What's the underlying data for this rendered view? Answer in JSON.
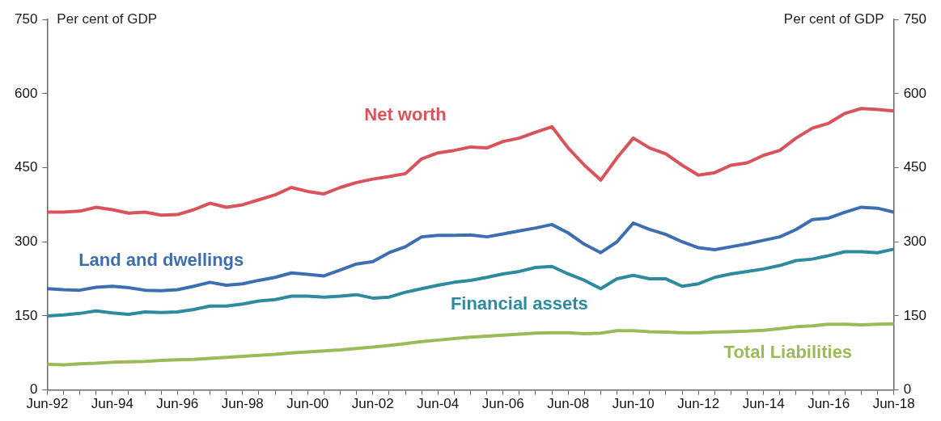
{
  "chart_data": {
    "type": "line",
    "ylabel": "Per cent of GDP",
    "y2label": "Per cent of GDP",
    "categories": [
      "Jun-92",
      null,
      null,
      null,
      "Jun-94",
      null,
      null,
      null,
      "Jun-96",
      null,
      null,
      null,
      "Jun-98",
      null,
      null,
      null,
      "Jun-00",
      null,
      null,
      null,
      "Jun-02",
      null,
      null,
      null,
      "Jun-04",
      null,
      null,
      null,
      "Jun-06",
      null,
      null,
      null,
      "Jun-08",
      null,
      null,
      null,
      "Jun-10",
      null,
      null,
      null,
      "Jun-12",
      null,
      null,
      null,
      "Jun-14",
      null,
      null,
      null,
      "Jun-16",
      null,
      null,
      null,
      "Jun-18"
    ],
    "ylim": [
      0,
      750
    ],
    "yticks": [
      0,
      150,
      300,
      450,
      600,
      750
    ],
    "y2lim": [
      0,
      750
    ],
    "y2ticks": [
      0,
      150,
      300,
      450,
      600,
      750
    ],
    "series": [
      {
        "name": "Net worth",
        "color": "#d9535a",
        "values": [
          360,
          360,
          362,
          370,
          365,
          358,
          360,
          354,
          355,
          365,
          378,
          370,
          375,
          385,
          395,
          410,
          402,
          397,
          410,
          420,
          427,
          432,
          438,
          468,
          480,
          485,
          492,
          490,
          503,
          510,
          522,
          533,
          490,
          455,
          425,
          470,
          510,
          490,
          478,
          455,
          435,
          440,
          455,
          460,
          475,
          485,
          510,
          530,
          540,
          560,
          570,
          568,
          565
        ]
      },
      {
        "name": "Land and dwellings",
        "color": "#3d6fb0",
        "values": [
          205,
          203,
          202,
          208,
          210,
          207,
          202,
          201,
          203,
          210,
          218,
          212,
          215,
          222,
          228,
          237,
          234,
          231,
          243,
          255,
          260,
          278,
          290,
          310,
          313,
          313,
          314,
          310,
          316,
          322,
          328,
          335,
          318,
          295,
          278,
          300,
          338,
          325,
          315,
          300,
          288,
          284,
          290,
          296,
          303,
          310,
          325,
          345,
          348,
          360,
          370,
          368,
          360
        ]
      },
      {
        "name": "Financial assets",
        "color": "#2e8a9e",
        "values": [
          150,
          152,
          155,
          160,
          156,
          153,
          158,
          157,
          158,
          163,
          170,
          170,
          174,
          180,
          183,
          190,
          190,
          188,
          190,
          193,
          186,
          188,
          198,
          205,
          212,
          218,
          222,
          228,
          235,
          240,
          248,
          250,
          235,
          222,
          205,
          225,
          232,
          225,
          225,
          210,
          215,
          228,
          235,
          240,
          245,
          252,
          262,
          265,
          272,
          280,
          280,
          278,
          285
        ]
      },
      {
        "name": "Total Liabilities",
        "color": "#9bbb59",
        "values": [
          52,
          51,
          53,
          54,
          56,
          57,
          58,
          60,
          61,
          62,
          64,
          66,
          68,
          70,
          72,
          75,
          77,
          79,
          81,
          84,
          87,
          90,
          94,
          98,
          101,
          104,
          107,
          109,
          111,
          113,
          115,
          116,
          116,
          114,
          115,
          120,
          120,
          118,
          117,
          116,
          116,
          117,
          118,
          119,
          121,
          124,
          128,
          130,
          133,
          133,
          132,
          133,
          134
        ]
      }
    ]
  }
}
